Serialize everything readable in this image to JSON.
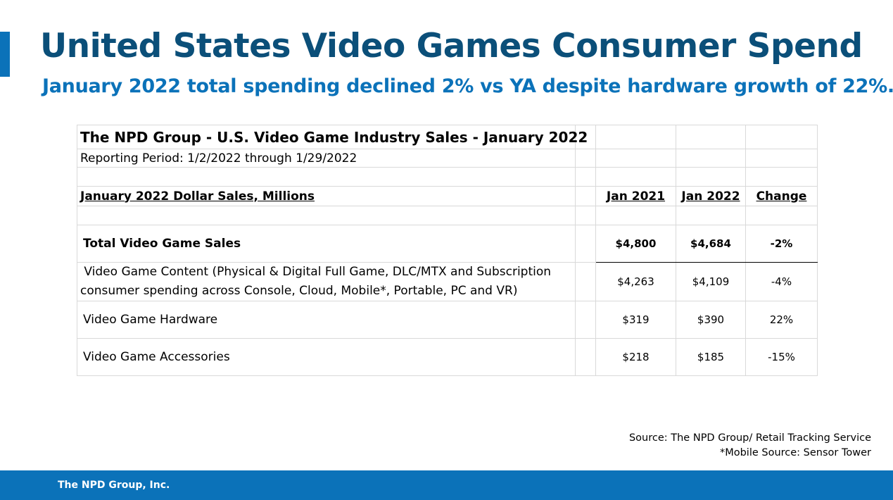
{
  "slide": {
    "title": "United States Video Games Consumer Spend",
    "subtitle": "January 2022 total spending declined 2% vs YA despite hardware growth of 22%.",
    "accent_color": "#0b72b9",
    "title_color": "#0b4f79"
  },
  "table": {
    "report_title": "The NPD Group - U.S. Video Game Industry Sales - January 2022",
    "reporting_period": "Reporting Period: 1/2/2022 through 1/29/2022",
    "section_header": "January 2022 Dollar Sales, Millions",
    "columns": [
      "Jan 2021",
      "Jan 2022",
      "Change"
    ],
    "rows": [
      {
        "label": "Total Video Game Sales",
        "jan2021": "$4,800",
        "jan2022": "$4,684",
        "change": "-2%"
      },
      {
        "label_line1": "Video Game Content (Physical & Digital Full Game, DLC/MTX and Subscription",
        "label_line2": "consumer spending across Console, Cloud, Mobile*, Portable, PC and VR)",
        "jan2021": "$4,263",
        "jan2022": "$4,109",
        "change": "-4%"
      },
      {
        "label": "Video Game Hardware",
        "jan2021": "$319",
        "jan2022": "$390",
        "change": "22%"
      },
      {
        "label": "Video Game Accessories",
        "jan2021": "$218",
        "jan2022": "$185",
        "change": "-15%"
      }
    ]
  },
  "source": {
    "line1": "Source: The NPD Group/ Retail Tracking Service",
    "line2": "*Mobile Source: Sensor Tower"
  },
  "footer": {
    "company": "The NPD Group, Inc."
  }
}
